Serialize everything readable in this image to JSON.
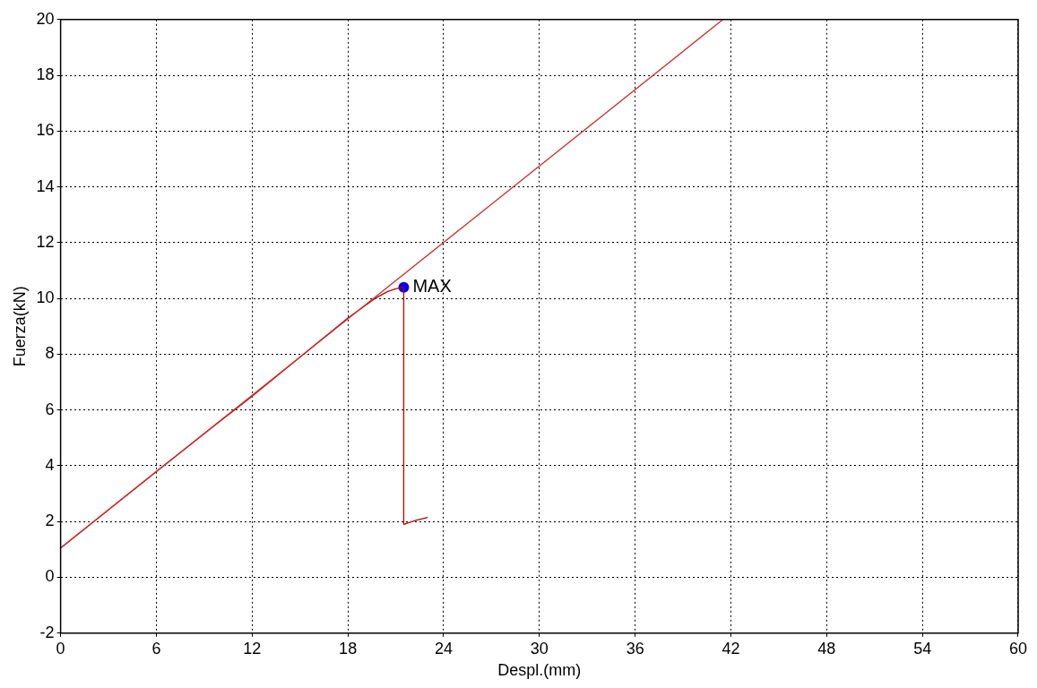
{
  "chart_data": {
    "type": "line",
    "xlabel": "Despl.(mm)",
    "ylabel": "Fuerza(kN)",
    "xlim": [
      0,
      60
    ],
    "xticks": [
      0,
      6,
      12,
      18,
      24,
      30,
      36,
      42,
      48,
      54,
      60
    ],
    "ylim": [
      -2,
      20
    ],
    "yticks": [
      -2,
      0,
      2,
      4,
      6,
      8,
      10,
      12,
      14,
      16,
      18,
      20
    ],
    "grid": true,
    "legend": false,
    "marker": "none",
    "line_style": "solid",
    "series": [
      {
        "type": "line",
        "color": "#c83030",
        "x": [
          0,
          41.5
        ],
        "values": [
          1.05,
          20
        ]
      },
      {
        "type": "line",
        "color": "#c00000",
        "x": [
          0,
          6,
          12,
          18,
          19.7,
          20.5,
          21,
          21.5,
          21.5,
          22.3,
          23
        ],
        "values": [
          1.05,
          3.8,
          6.5,
          9.3,
          10.0,
          10.25,
          10.35,
          10.4,
          1.9,
          2.05,
          2.15
        ]
      },
      {
        "type": "scatter",
        "color": "#0000ee",
        "marker": "circle",
        "x": [
          21.5
        ],
        "values": [
          10.4
        ]
      }
    ],
    "annotations": [
      {
        "text": "MAX",
        "x": 21.5,
        "y": 10.4
      }
    ]
  }
}
